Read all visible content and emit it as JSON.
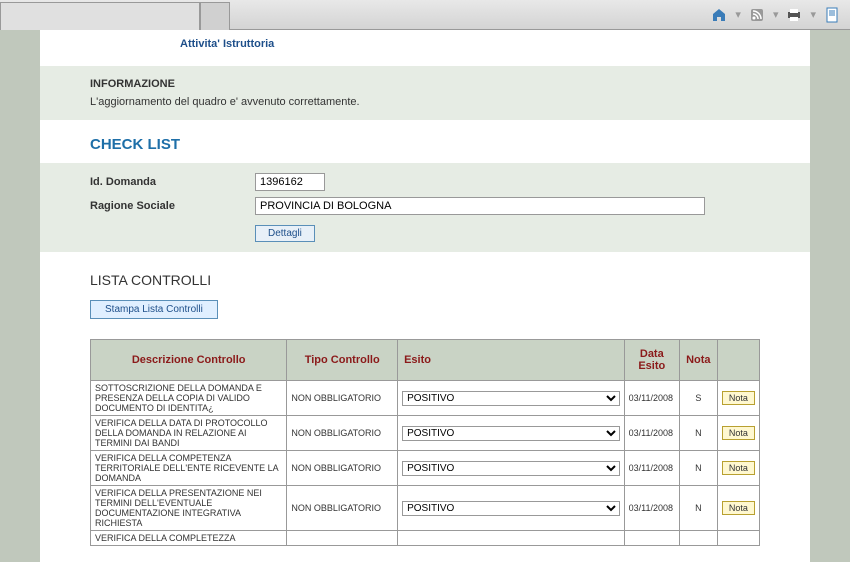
{
  "nav": {
    "link_label": "Attivita' Istruttoria"
  },
  "info": {
    "title": "INFORMAZIONE",
    "message": "L'aggiornamento del quadro e' avvenuto correttamente."
  },
  "checklist": {
    "title": "CHECK LIST",
    "id_label": "Id. Domanda",
    "id_value": "1396162",
    "ragione_label": "Ragione Sociale",
    "ragione_value": "PROVINCIA DI BOLOGNA",
    "dettagli_label": "Dettagli"
  },
  "lista": {
    "title": "LISTA CONTROLLI",
    "stampa_label": "Stampa Lista Controlli"
  },
  "table": {
    "headers": {
      "descrizione": "Descrizione Controllo",
      "tipo": "Tipo Controllo",
      "esito": "Esito",
      "data_esito": "Data Esito",
      "nota": "Nota",
      "action": ""
    },
    "nota_button_label": "Nota",
    "rows": [
      {
        "descrizione": "SOTTOSCRIZIONE DELLA DOMANDA E PRESENZA DELLA COPIA DI VALIDO DOCUMENTO DI IDENTITA¿",
        "tipo": "NON OBBLIGATORIO",
        "esito": "POSITIVO",
        "data_esito": "03/11/2008",
        "nota": "S"
      },
      {
        "descrizione": "VERIFICA DELLA DATA DI PROTOCOLLO DELLA DOMANDA IN RELAZIONE AI TERMINI DAI BANDI",
        "tipo": "NON OBBLIGATORIO",
        "esito": "POSITIVO",
        "data_esito": "03/11/2008",
        "nota": "N"
      },
      {
        "descrizione": "VERIFICA DELLA COMPETENZA TERRITORIALE DELL'ENTE RICEVENTE LA DOMANDA",
        "tipo": "NON OBBLIGATORIO",
        "esito": "POSITIVO",
        "data_esito": "03/11/2008",
        "nota": "N"
      },
      {
        "descrizione": "VERIFICA DELLA PRESENTAZIONE NEI TERMINI DELL'EVENTUALE DOCUMENTAZIONE INTEGRATIVA RICHIESTA",
        "tipo": "NON OBBLIGATORIO",
        "esito": "POSITIVO",
        "data_esito": "03/11/2008",
        "nota": "N"
      },
      {
        "descrizione": "VERIFICA DELLA COMPLETEZZA",
        "tipo": "",
        "esito": "",
        "data_esito": "",
        "nota": ""
      }
    ]
  }
}
